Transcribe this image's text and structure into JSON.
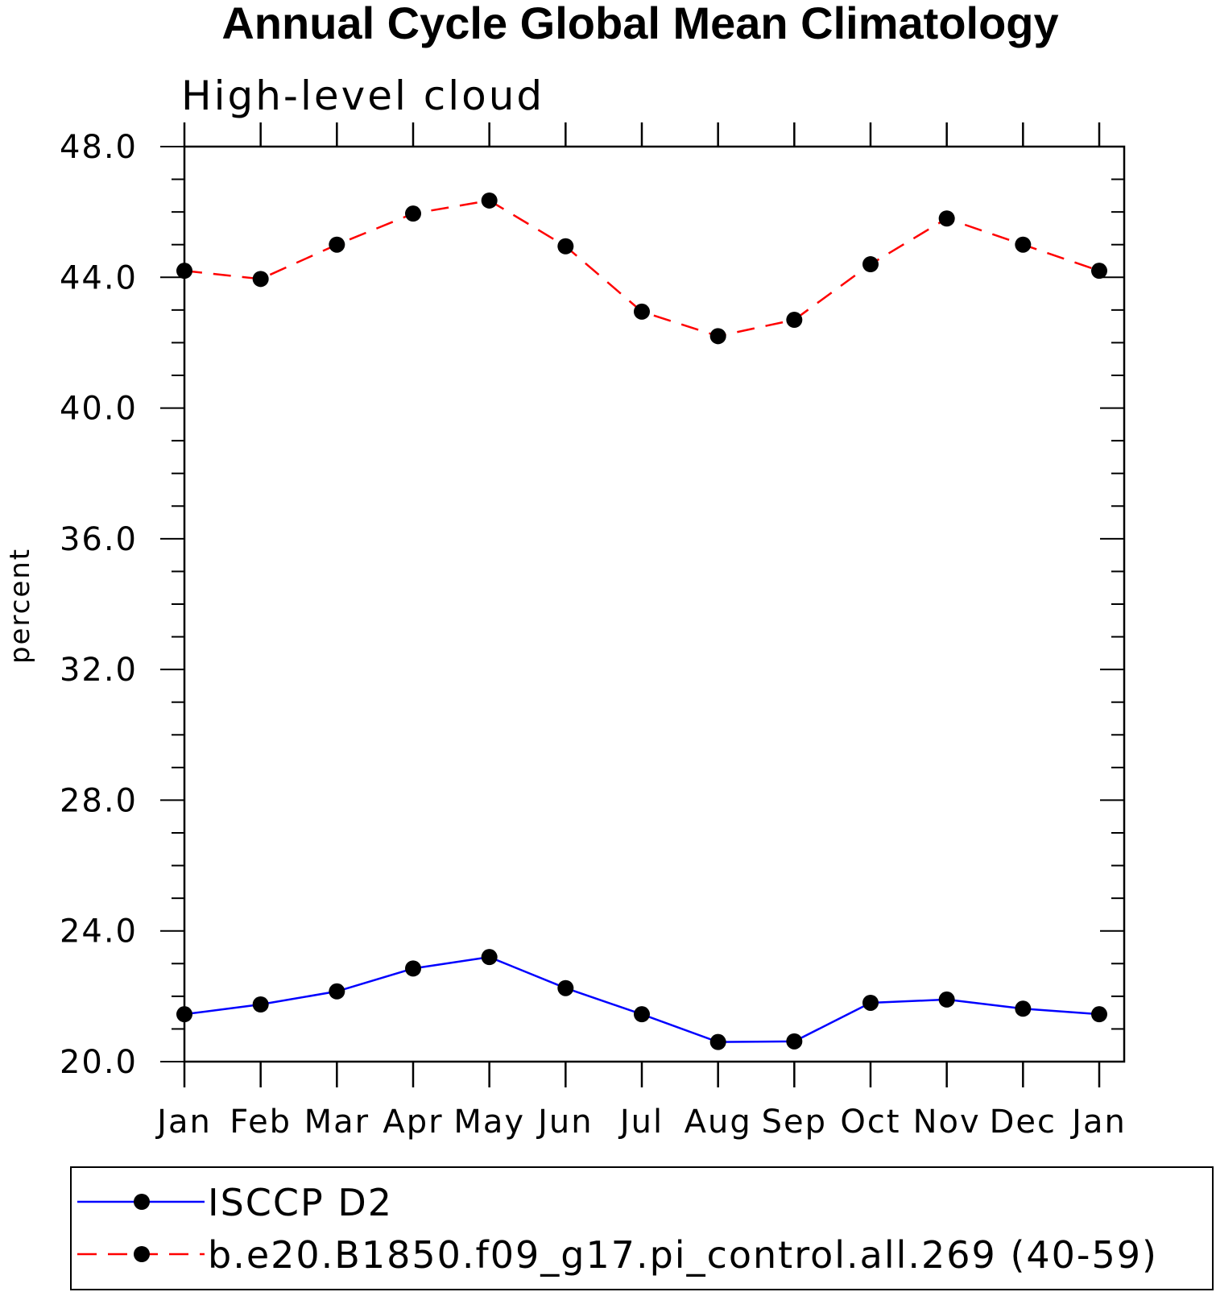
{
  "chart_data": {
    "type": "line",
    "title": "Annual Cycle Global Mean Climatology",
    "subtitle": "High-level cloud",
    "xlabel": "",
    "ylabel": "percent",
    "categories": [
      "Jan",
      "Feb",
      "Mar",
      "Apr",
      "May",
      "Jun",
      "Jul",
      "Aug",
      "Sep",
      "Oct",
      "Nov",
      "Dec",
      "Jan"
    ],
    "ylim": [
      20.0,
      48.0
    ],
    "yticks": [
      "20.0",
      "24.0",
      "28.0",
      "32.0",
      "36.0",
      "40.0",
      "44.0",
      "48.0"
    ],
    "ytick_values": [
      20,
      24,
      28,
      32,
      36,
      40,
      44,
      48
    ],
    "yminor_step": 1,
    "grid": false,
    "legend_position": "bottom",
    "series": [
      {
        "name": "ISCCP D2",
        "color": "#0000ff",
        "style": "solid",
        "marker": "filled-circle",
        "values": [
          21.45,
          21.75,
          22.15,
          22.85,
          23.2,
          22.25,
          21.45,
          20.6,
          20.62,
          21.8,
          21.9,
          21.62,
          21.45
        ]
      },
      {
        "name": "b.e20.B1850.f09_g17.pi_control.all.269 (40-59)",
        "color": "#ff0000",
        "style": "dashed",
        "marker": "filled-circle",
        "values": [
          44.2,
          43.95,
          45.0,
          45.95,
          46.35,
          44.95,
          42.95,
          42.2,
          42.7,
          44.4,
          45.8,
          45.0,
          44.2
        ]
      }
    ]
  }
}
